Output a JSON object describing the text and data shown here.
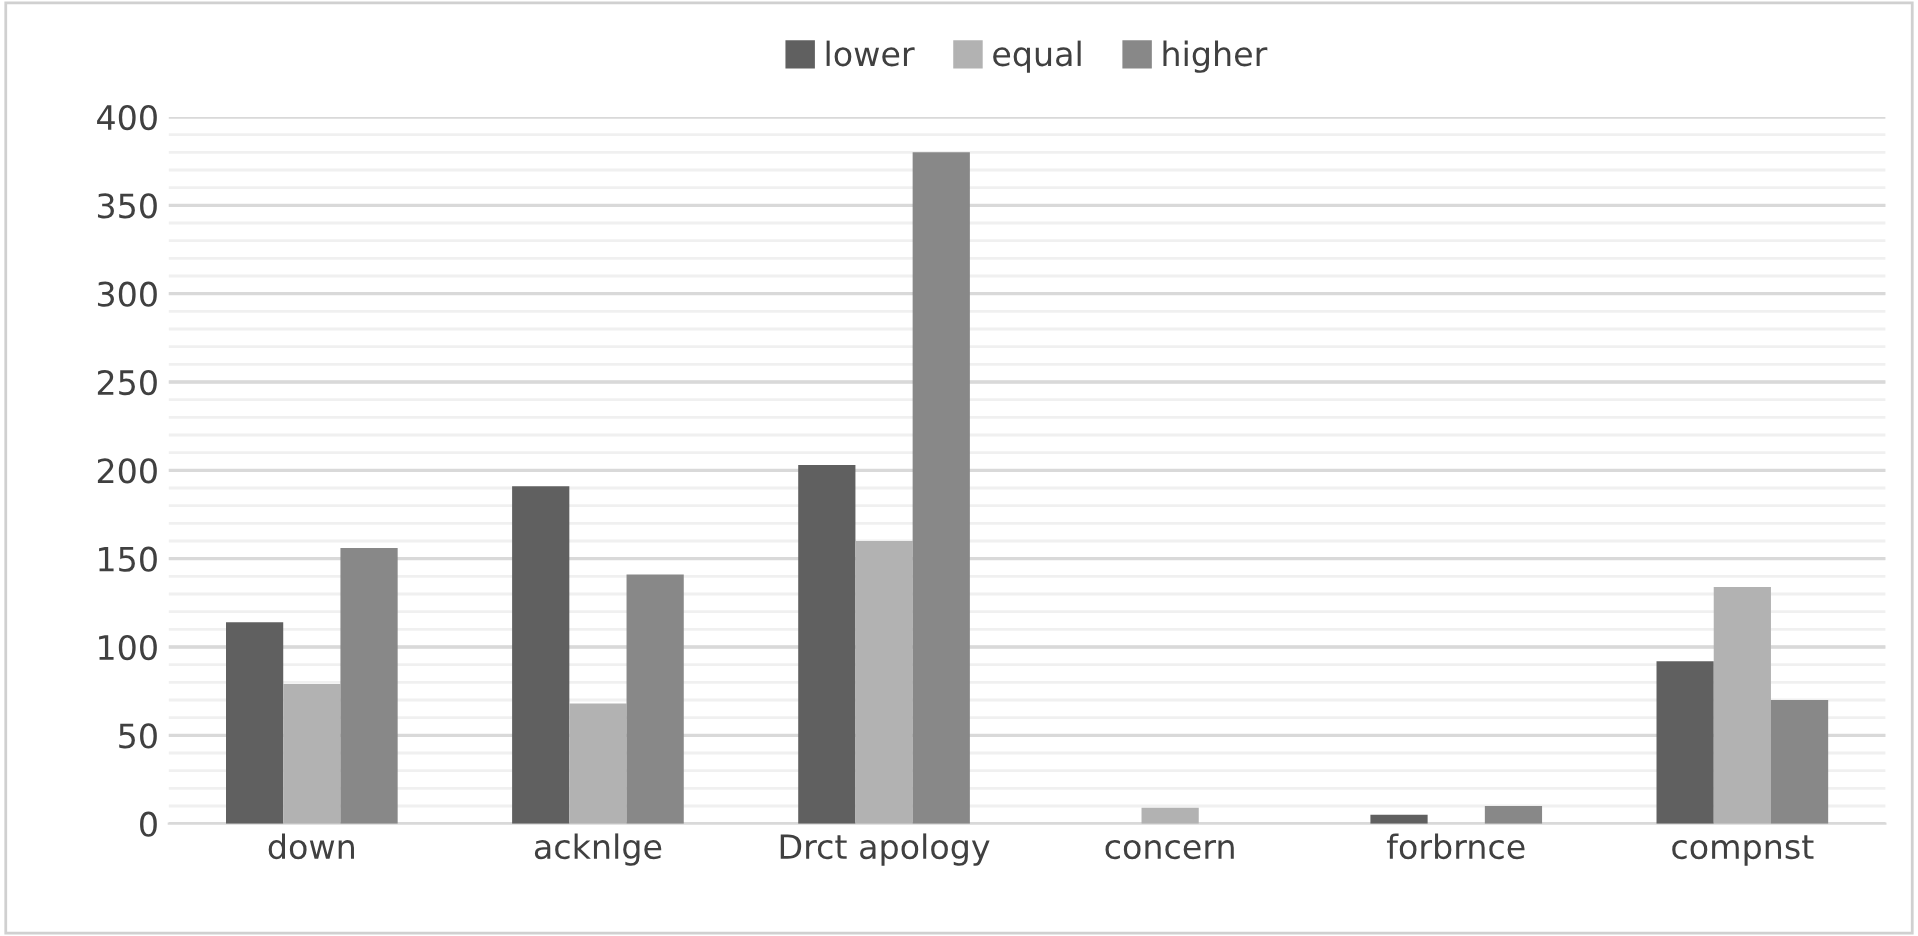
{
  "chart_data": {
    "type": "bar",
    "categories": [
      "down",
      "acknlge",
      "Drct apology",
      "concern",
      "forbrnce",
      "compnst"
    ],
    "series": [
      {
        "name": "lower",
        "color": "#606060",
        "values": [
          114,
          191,
          203,
          0,
          5,
          92
        ]
      },
      {
        "name": "equal",
        "color": "#b2b2b2",
        "values": [
          79,
          68,
          160,
          9,
          0,
          134
        ]
      },
      {
        "name": "higher",
        "color": "#888888",
        "values": [
          156,
          141,
          380,
          0,
          10,
          70
        ]
      }
    ],
    "ylim": [
      0,
      400
    ],
    "yticks": [
      0,
      50,
      100,
      150,
      200,
      250,
      300,
      350,
      400
    ],
    "grid": "y",
    "legend": "top"
  }
}
